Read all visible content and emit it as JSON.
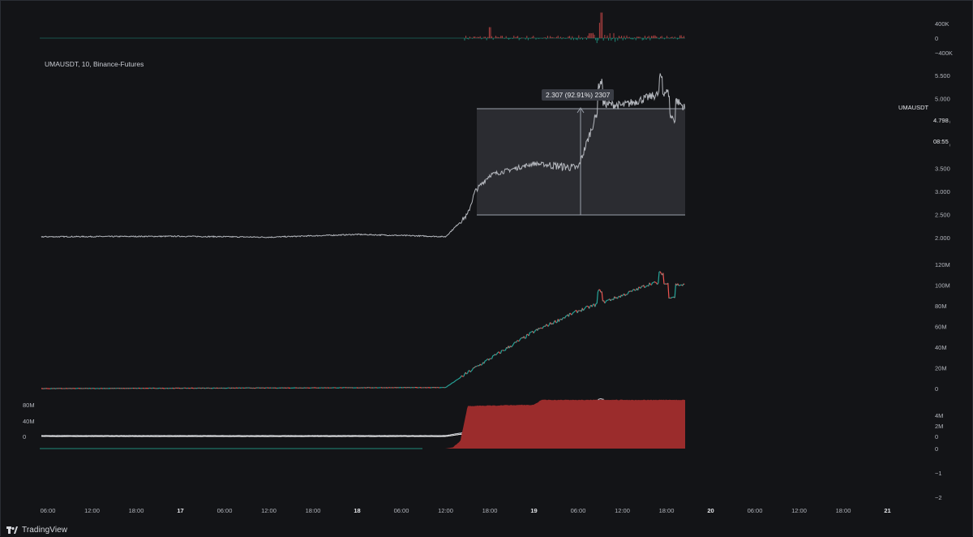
{
  "header": {
    "symbol_line": "UMAUSDT, 10, Binance-Futures"
  },
  "price_tag": {
    "symbol": "UMAUSDT",
    "price": "4.798",
    "countdown": "08:55"
  },
  "measure_tool": {
    "label": "2.307 (92.91%) 2307"
  },
  "footer": {
    "brand": "TradingView"
  },
  "colors": {
    "background": "#131417",
    "price_line": "#b4b7bd",
    "up": "#26a69a",
    "down": "#ef5350",
    "fill_down": "#9b2c2c",
    "measure_box": "#2b2c31",
    "text": "#c9ccd3"
  },
  "chart_data": [
    {
      "pane": "top-volume-delta",
      "type": "bar",
      "y_ticks": [
        "400K",
        "0",
        "−400K"
      ],
      "ylim": [
        -400000,
        700000
      ],
      "baseline_flat_until": "Mar 18 ~14:00",
      "notable_spikes": [
        {
          "x": "Mar 19 ~09:00",
          "value": 700000
        },
        {
          "x": "Mar 19 ~08:00",
          "value": 350000
        }
      ]
    },
    {
      "pane": "price",
      "type": "line",
      "y_ticks": [
        "5.500",
        "5.000",
        "4.500",
        "4.000",
        "3.500",
        "3.000",
        "2.500",
        "2.000"
      ],
      "ylim": [
        1.8,
        5.7
      ],
      "x": [
        "Mar 16 06:00",
        "Mar 17 00:00",
        "Mar 17 12:00",
        "Mar 18 00:00",
        "Mar 18 08:00",
        "Mar 18 12:00",
        "Mar 18 15:00",
        "Mar 18 16:00",
        "Mar 18 18:00",
        "Mar 19 00:00",
        "Mar 19 06:00",
        "Mar 19 09:00",
        "Mar 19 12:00",
        "Mar 19 18:00",
        "Mar 19 20:30"
      ],
      "values": [
        2.02,
        2.03,
        2.01,
        2.07,
        2.04,
        2.02,
        2.5,
        3.0,
        3.35,
        3.6,
        3.5,
        4.9,
        4.85,
        5.15,
        4.8
      ],
      "last_price": 4.798,
      "measure": {
        "from": 2.491,
        "to": 4.798,
        "change": 2.307,
        "percent": 92.91
      }
    },
    {
      "pane": "cumulative-volume-delta",
      "type": "line",
      "y_ticks": [
        "120M",
        "100M",
        "80M",
        "60M",
        "40M",
        "20M",
        "0"
      ],
      "ylim": [
        0,
        120000000
      ],
      "x": [
        "Mar 16 06:00",
        "Mar 18 12:00",
        "Mar 18 16:00",
        "Mar 19 00:00",
        "Mar 19 06:00",
        "Mar 19 12:00",
        "Mar 19 16:00",
        "Mar 19 20:30"
      ],
      "values": [
        0,
        1000000,
        20000000,
        55000000,
        75000000,
        90000000,
        102000000,
        100000000
      ]
    },
    {
      "pane": "open-interest",
      "type": "line",
      "left_ticks": [
        "80M",
        "40M",
        "0"
      ],
      "right_ticks": [
        "4M",
        "2M",
        "0"
      ],
      "series": [
        {
          "values": [
            0,
            0,
            1500000,
            3500000,
            5500000,
            5000000,
            5200000
          ]
        },
        {
          "values": [
            0,
            0,
            1200000,
            3000000,
            5800000,
            3500000,
            2800000
          ]
        }
      ],
      "x": [
        "Mar 16 06:00",
        "Mar 18 12:00",
        "Mar 18 18:00",
        "Mar 19 06:00",
        "Mar 19 09:00",
        "Mar 19 16:00",
        "Mar 19 20:30"
      ]
    },
    {
      "pane": "funding",
      "type": "area",
      "y_ticks": [
        "0",
        "−1",
        "−2"
      ],
      "ylim": [
        -2.1,
        0.1
      ],
      "x": [
        "Mar 16 06:00",
        "Mar 18 12:00",
        "Mar 18 13:00",
        "Mar 18 14:00",
        "Mar 18 15:00",
        "Mar 19 00:00",
        "Mar 19 01:00",
        "Mar 19 20:30"
      ],
      "values": [
        0,
        0,
        -0.05,
        -0.3,
        -1.75,
        -1.8,
        -2.0,
        -2.0
      ]
    }
  ],
  "x_axis": {
    "ticks": [
      "06:00",
      "12:00",
      "18:00",
      "17",
      "06:00",
      "12:00",
      "18:00",
      "18",
      "06:00",
      "12:00",
      "18:00",
      "19",
      "06:00",
      "12:00",
      "18:00",
      "20",
      "06:00",
      "12:00",
      "18:00",
      "21"
    ],
    "bold_ticks": [
      "17",
      "18",
      "19",
      "20",
      "21"
    ]
  }
}
